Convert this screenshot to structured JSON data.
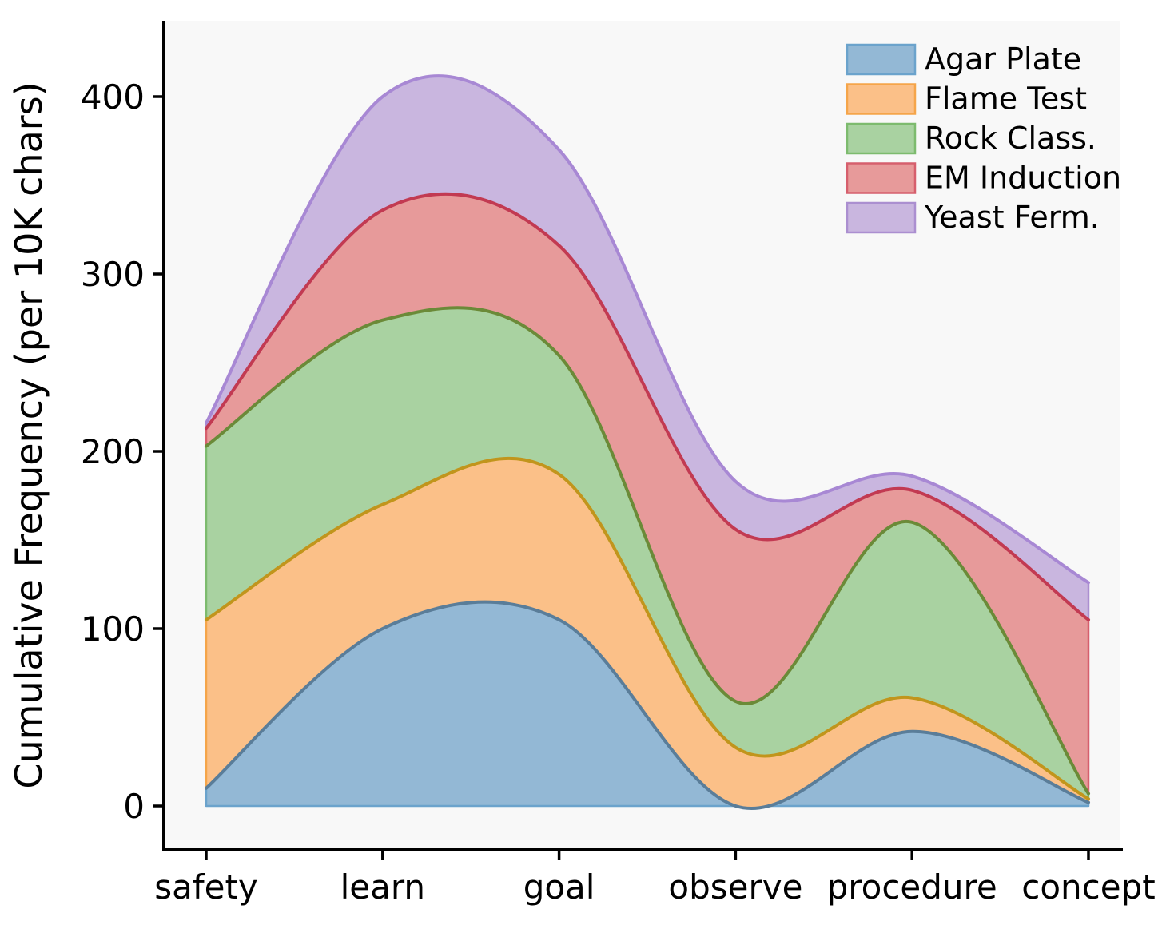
{
  "figure": {
    "background": "#ffffff",
    "plot_background": "#f8f8f8",
    "spine_color": "#000000"
  },
  "chart_data": {
    "type": "area",
    "stacked": true,
    "smooth": true,
    "grid": false,
    "title": "",
    "xlabel": "",
    "ylabel": "Cumulative Frequency (per 10K chars)",
    "categories": [
      "safety",
      "learn",
      "goal",
      "observe",
      "procedure",
      "concept"
    ],
    "yticks": [
      0,
      100,
      200,
      300,
      400
    ],
    "ylim": [
      -25,
      441
    ],
    "xlim_pad": [
      -0.24,
      0.18
    ],
    "legend_position": "upper right",
    "series": [
      {
        "name": "Agar Plate",
        "values": [
          10,
          100,
          105,
          0,
          42,
          2
        ],
        "fill": "#93b8d5",
        "edge": "#6ba3cc",
        "line": "#5a7d99"
      },
      {
        "name": "Flame Test",
        "values": [
          95,
          70,
          82,
          33,
          19,
          2
        ],
        "fill": "#fbc088",
        "edge": "#f5a54a",
        "line": "#c1951c"
      },
      {
        "name": "Rock Class.",
        "values": [
          98,
          104,
          67,
          26,
          99,
          3
        ],
        "fill": "#a9d2a1",
        "edge": "#7dbb6e",
        "line": "#6b8a38"
      },
      {
        "name": "EM Induction",
        "values": [
          10,
          62,
          62,
          97,
          18,
          98
        ],
        "fill": "#e79a9a",
        "edge": "#d65f6d",
        "line": "#c23a52"
      },
      {
        "name": "Yeast Ferm.",
        "values": [
          3,
          64,
          54,
          27,
          8,
          21
        ],
        "fill": "#c9b6df",
        "edge": "#ab8fd0",
        "line": "#a888d4"
      }
    ]
  }
}
